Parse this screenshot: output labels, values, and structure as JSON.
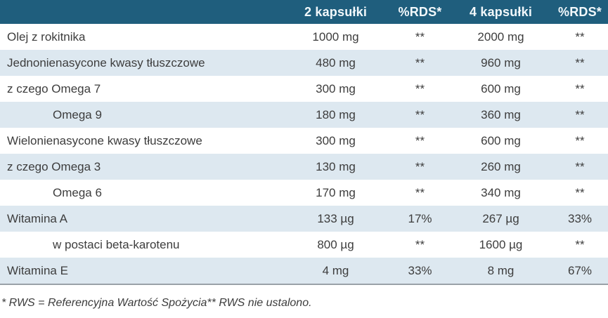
{
  "colors": {
    "header_bg": "#1f5e7d",
    "header_text": "#f2f8fb",
    "row_alt_bg": "#dde8f0",
    "row_text": "#3d3d3d",
    "divider": "#9aa1a7",
    "footnote_text": "#3c3c3c"
  },
  "table": {
    "header": {
      "product_column_label": "",
      "columns": [
        "2 kapsułki",
        "%RDS*",
        "4 kapsułki",
        "%RDS*"
      ]
    },
    "rows": [
      {
        "label": "Olej z rokitnika",
        "indent": false,
        "values": [
          "1000 mg",
          "**",
          "2000 mg",
          "**"
        ]
      },
      {
        "label": "Jednonienasycone kwasy tłuszczowe",
        "indent": false,
        "values": [
          "480 mg",
          "**",
          "960 mg",
          "**"
        ]
      },
      {
        "label": "z czego Omega 7",
        "indent": false,
        "values": [
          "300 mg",
          "**",
          "600 mg",
          "**"
        ]
      },
      {
        "label": "Omega 9",
        "indent": true,
        "values": [
          "180 mg",
          "**",
          "360 mg",
          "**"
        ]
      },
      {
        "label": "Wielonienasycone kwasy tłuszczowe",
        "indent": false,
        "values": [
          "300 mg",
          "**",
          "600 mg",
          "**"
        ]
      },
      {
        "label": "z czego Omega 3",
        "indent": false,
        "values": [
          "130 mg",
          "**",
          "260 mg",
          "**"
        ]
      },
      {
        "label": "Omega 6",
        "indent": true,
        "values": [
          "170 mg",
          "**",
          "340 mg",
          "**"
        ]
      },
      {
        "label": "Witamina A",
        "indent": false,
        "values": [
          "133 µg",
          "17%",
          "267 µg",
          "33%"
        ]
      },
      {
        "label": "w postaci beta-karotenu",
        "indent": true,
        "values": [
          "800 µg",
          "**",
          "1600 µg",
          "**"
        ]
      },
      {
        "label": "Witamina E",
        "indent": false,
        "values": [
          "4 mg",
          "33%",
          "8 mg",
          "67%"
        ]
      }
    ]
  },
  "footnote": "* RWS = Referencyjna Wartość Spożycia** RWS nie ustalono."
}
